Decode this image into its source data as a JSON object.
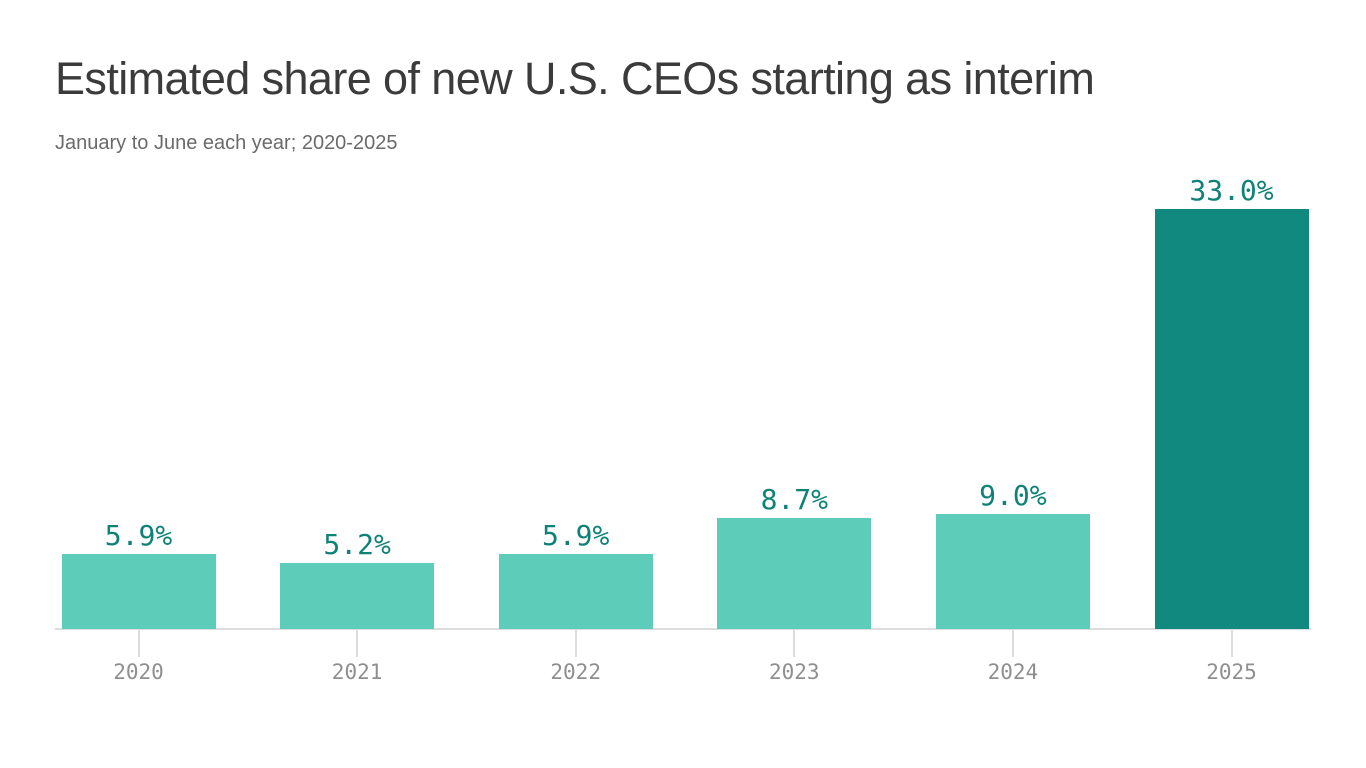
{
  "header": {
    "title": "Estimated share of new U.S. CEOs starting as interim",
    "subtitle": "January to June each year; 2020-2025"
  },
  "chart_data": {
    "type": "bar",
    "title": "Estimated share of new U.S. CEOs starting as interim",
    "subtitle": "January to June each year; 2020-2025",
    "categories": [
      "2020",
      "2021",
      "2022",
      "2023",
      "2024",
      "2025"
    ],
    "values": [
      5.9,
      5.2,
      5.9,
      8.7,
      9.0,
      33.0
    ],
    "value_labels": [
      "5.9%",
      "5.2%",
      "5.9%",
      "8.7%",
      "9.0%",
      "33.0%"
    ],
    "xlabel": "",
    "ylabel": "",
    "ylim": [
      0,
      33
    ],
    "grid": false,
    "legend": false,
    "highlight_index": 5,
    "colors": {
      "bar_light": "#5dccb9",
      "bar_dark": "#11897f",
      "value_label": "#0f8278",
      "year_label": "#8f8f8f",
      "axis": "#dcdcdc",
      "title": "#3b3b3b",
      "subtitle": "#6a6a6a",
      "background": "#ffffff"
    }
  }
}
